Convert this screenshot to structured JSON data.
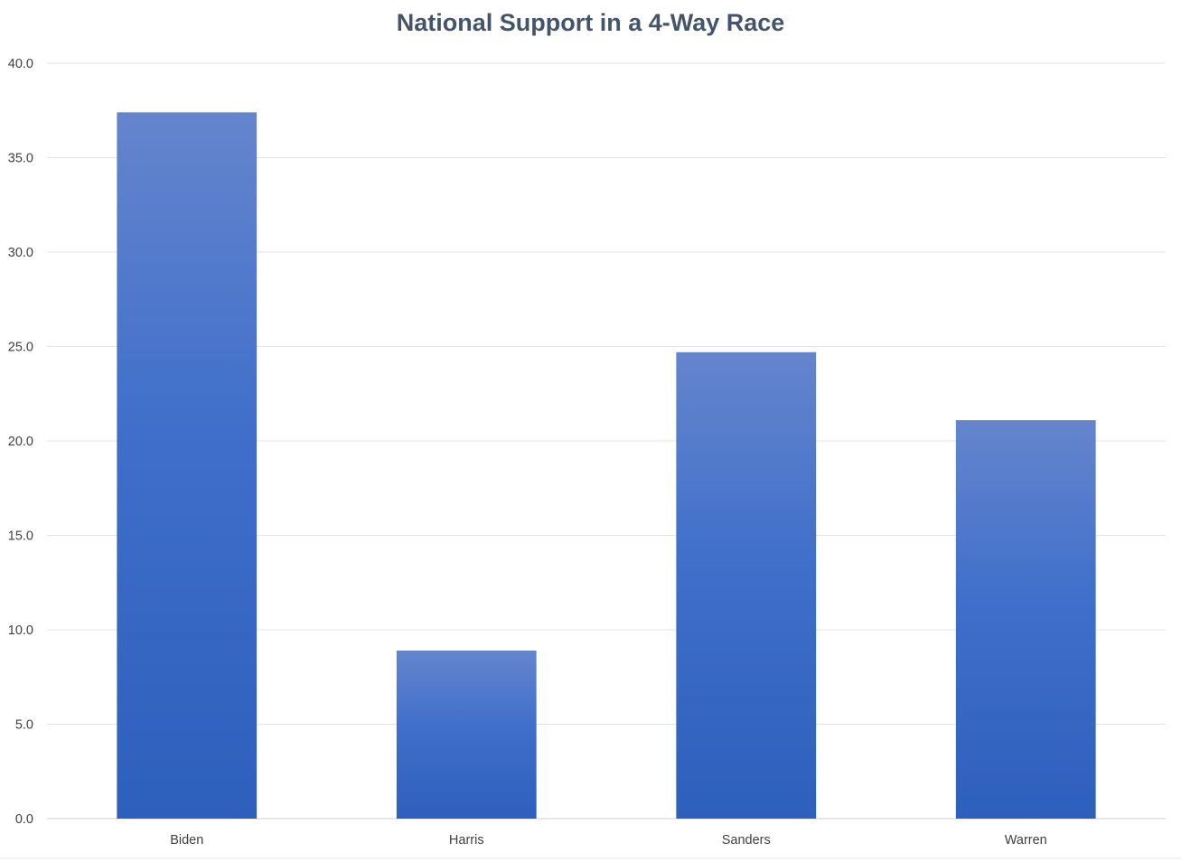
{
  "chart_data": {
    "type": "bar",
    "title": "National Support in a 4-Way Race",
    "categories": [
      "Biden",
      "Harris",
      "Sanders",
      "Warren"
    ],
    "values": [
      37.4,
      8.9,
      24.7,
      21.1
    ],
    "xlabel": "",
    "ylabel": "",
    "ylim": [
      0,
      40
    ],
    "yticks": [
      "0.0",
      "5.0",
      "10.0",
      "15.0",
      "20.0",
      "25.0",
      "30.0",
      "35.0",
      "40.0"
    ],
    "grid": true,
    "legend": "none",
    "colors": {
      "bar_top": "#6585cd",
      "bar_bottom": "#2d5fbc",
      "title": "#44546a",
      "grid": "#e3e3e3"
    }
  }
}
